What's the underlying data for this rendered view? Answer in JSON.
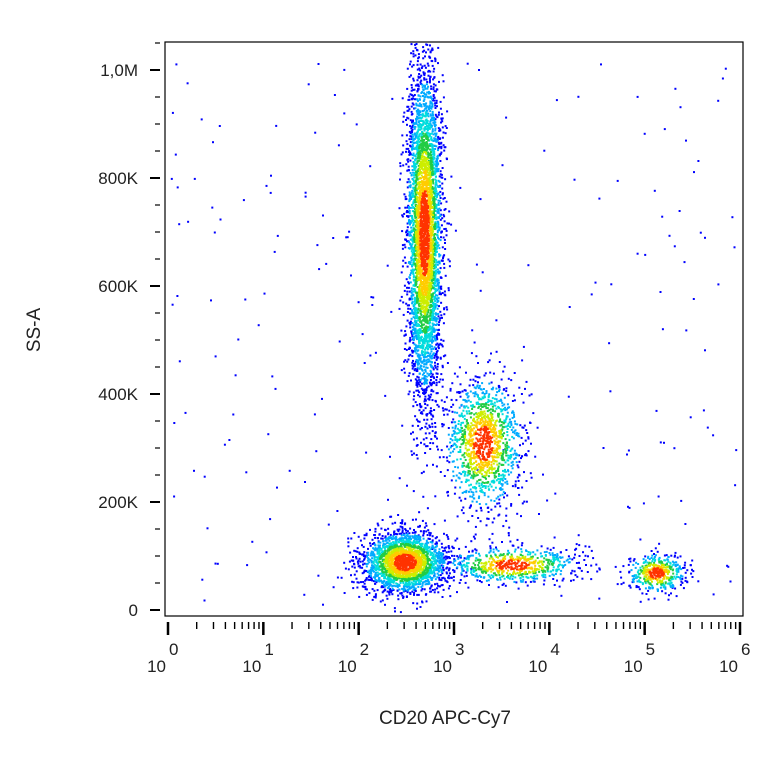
{
  "chart_data": {
    "type": "scatter",
    "title": "",
    "xlabel": "CD20 APC-Cy7",
    "ylabel": "SS-A",
    "x_scale": "log",
    "xlim": [
      1,
      1000000
    ],
    "ylim": [
      0,
      1050000
    ],
    "x_ticks": [
      {
        "value": 1,
        "base": "10",
        "exp": "0"
      },
      {
        "value": 10,
        "base": "10",
        "exp": "1"
      },
      {
        "value": 100,
        "base": "10",
        "exp": "2"
      },
      {
        "value": 1000,
        "base": "10",
        "exp": "3"
      },
      {
        "value": 10000,
        "base": "10",
        "exp": "4"
      },
      {
        "value": 100000,
        "base": "10",
        "exp": "5"
      },
      {
        "value": 1000000,
        "base": "10",
        "exp": "6"
      }
    ],
    "y_ticks": [
      {
        "value": 0,
        "label": "0"
      },
      {
        "value": 200000,
        "label": "200K"
      },
      {
        "value": 400000,
        "label": "400K"
      },
      {
        "value": 600000,
        "label": "600K"
      },
      {
        "value": 800000,
        "label": "800K"
      },
      {
        "value": 1000000,
        "label": "1,0M"
      }
    ],
    "grid": false,
    "legend": "none",
    "colormap": [
      "#0000ff",
      "#00aaff",
      "#00dddd",
      "#22cc44",
      "#ccee00",
      "#ffcc00",
      "#ff3300"
    ],
    "populations": [
      {
        "x_center": 300,
        "y_center": 90000,
        "x_spread_log": 0.22,
        "y_spread": 28000,
        "count": 2400
      },
      {
        "x_center": 4000,
        "y_center": 85000,
        "x_spread_log": 0.35,
        "y_spread": 17000,
        "count": 700
      },
      {
        "x_center": 480,
        "y_center": 700000,
        "x_spread_log": 0.09,
        "y_spread": 150000,
        "count": 4200
      },
      {
        "x_center": 2000,
        "y_center": 310000,
        "x_spread_log": 0.2,
        "y_spread": 60000,
        "count": 1300
      },
      {
        "x_center": 130000,
        "y_center": 70000,
        "x_spread_log": 0.15,
        "y_spread": 18000,
        "count": 450
      }
    ]
  }
}
